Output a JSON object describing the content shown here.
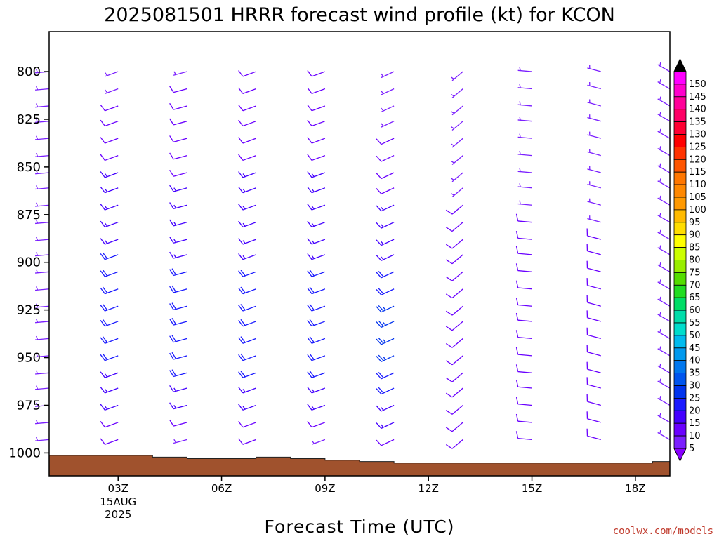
{
  "title": "2025081501 HRRR forecast wind profile (kt) for KCON",
  "xlabel": "Forecast Time (UTC)",
  "credit": "coolwx.com/models",
  "chart_data": {
    "type": "wind_barb_profile",
    "title": "2025081501 HRRR forecast wind profile (kt) for KCON",
    "xlabel": "Forecast Time (UTC)",
    "ylabel": "",
    "units": "kt",
    "y_axis": {
      "reversed": true,
      "range": [
        1012,
        779
      ],
      "ticks": [
        800,
        825,
        850,
        875,
        900,
        925,
        950,
        975,
        1000
      ]
    },
    "x_axis": {
      "range": [
        1,
        19
      ],
      "ticks": [
        {
          "t": 3,
          "label": "03Z",
          "sub": [
            "15AUG",
            "2025"
          ]
        },
        {
          "t": 6,
          "label": "06Z"
        },
        {
          "t": 9,
          "label": "09Z"
        },
        {
          "t": 12,
          "label": "12Z"
        },
        {
          "t": 15,
          "label": "15Z"
        },
        {
          "t": 18,
          "label": "18Z"
        }
      ]
    },
    "levels": [
      800,
      809,
      818,
      826,
      835,
      844,
      853,
      861,
      870,
      879,
      888,
      896,
      905,
      914,
      923,
      931,
      940,
      949,
      958,
      966,
      975,
      984,
      993
    ],
    "barb_times": [
      1,
      3,
      5,
      7,
      9,
      11,
      13,
      15,
      17,
      19
    ],
    "barbs": [
      {
        "t": 1,
        "dir": 265,
        "spd": [
          5,
          5,
          5,
          5,
          5,
          5,
          5,
          5,
          5,
          5,
          5,
          5,
          5,
          5,
          5,
          5,
          5,
          5,
          5,
          5,
          5,
          5,
          5
        ]
      },
      {
        "t": 3,
        "dir": 250,
        "spd": [
          5,
          5,
          10,
          10,
          10,
          10,
          15,
          15,
          15,
          15,
          15,
          20,
          20,
          20,
          20,
          20,
          20,
          20,
          15,
          15,
          15,
          10,
          10
        ]
      },
      {
        "t": 5,
        "dir": 255,
        "spd": [
          5,
          10,
          10,
          10,
          10,
          10,
          10,
          15,
          15,
          15,
          15,
          15,
          20,
          20,
          20,
          20,
          20,
          20,
          20,
          15,
          15,
          10,
          5
        ]
      },
      {
        "t": 7,
        "dir": 250,
        "spd": [
          10,
          10,
          10,
          10,
          10,
          10,
          15,
          15,
          15,
          15,
          15,
          15,
          20,
          20,
          20,
          20,
          20,
          20,
          20,
          15,
          15,
          10,
          10
        ]
      },
      {
        "t": 9,
        "dir": 250,
        "spd": [
          10,
          10,
          10,
          10,
          10,
          10,
          15,
          15,
          15,
          15,
          15,
          15,
          20,
          20,
          20,
          20,
          20,
          20,
          20,
          15,
          15,
          10,
          5
        ]
      },
      {
        "t": 11,
        "dir": 245,
        "spd": [
          5,
          5,
          5,
          5,
          10,
          10,
          10,
          10,
          15,
          15,
          15,
          15,
          20,
          20,
          25,
          25,
          25,
          25,
          20,
          20,
          15,
          15,
          10
        ]
      },
      {
        "t": 13,
        "dir": 230,
        "spd": [
          5,
          5,
          5,
          5,
          5,
          5,
          5,
          5,
          10,
          10,
          10,
          10,
          10,
          10,
          10,
          10,
          10,
          10,
          10,
          10,
          10,
          10,
          10
        ]
      },
      {
        "t": 15,
        "dir": 275,
        "spd": [
          5,
          5,
          5,
          5,
          5,
          5,
          5,
          5,
          5,
          10,
          10,
          10,
          10,
          10,
          10,
          10,
          10,
          10,
          10,
          10,
          10,
          10,
          10
        ]
      },
      {
        "t": 17,
        "dir": 285,
        "spd": [
          5,
          5,
          5,
          5,
          5,
          5,
          5,
          5,
          5,
          5,
          10,
          10,
          10,
          10,
          10,
          10,
          10,
          10,
          10,
          10,
          10,
          10,
          10
        ]
      },
      {
        "t": 19,
        "dir": 300,
        "spd": [
          5,
          5,
          5,
          5,
          5,
          5,
          5,
          5,
          5,
          5,
          5,
          5,
          5,
          5,
          5,
          5,
          5,
          5,
          5,
          5,
          5,
          5,
          5
        ]
      }
    ],
    "surface_pressure": [
      {
        "t": 1,
        "p": 1001.3
      },
      {
        "t": 4,
        "p": 1001.3
      },
      {
        "t": 4,
        "p": 1002.2
      },
      {
        "t": 5,
        "p": 1002.2
      },
      {
        "t": 5,
        "p": 1003.0
      },
      {
        "t": 7,
        "p": 1003.0
      },
      {
        "t": 7,
        "p": 1002.2
      },
      {
        "t": 8,
        "p": 1002.2
      },
      {
        "t": 8,
        "p": 1003.0
      },
      {
        "t": 9,
        "p": 1003.0
      },
      {
        "t": 9,
        "p": 1003.8
      },
      {
        "t": 10,
        "p": 1003.8
      },
      {
        "t": 10,
        "p": 1004.5
      },
      {
        "t": 11,
        "p": 1004.5
      },
      {
        "t": 11,
        "p": 1005.3
      },
      {
        "t": 18.5,
        "p": 1005.3
      },
      {
        "t": 18.5,
        "p": 1004.5
      },
      {
        "t": 19,
        "p": 1004.5
      }
    ],
    "colorbar": {
      "labels": [
        "5",
        "10",
        "15",
        "20",
        "25",
        "30",
        "35",
        "40",
        "45",
        "50",
        "55",
        "60",
        "65",
        "70",
        "75",
        "80",
        "85",
        "90",
        "95",
        "100",
        "105",
        "110",
        "115",
        "120",
        "125",
        "130",
        "135",
        "140",
        "145",
        "150"
      ],
      "colors": [
        "#7b1fff",
        "#6a00ff",
        "#4400ff",
        "#1a1aff",
        "#0033ee",
        "#0055ee",
        "#0077ee",
        "#0099ee",
        "#00bbee",
        "#00ddcc",
        "#00ddaa",
        "#00dd66",
        "#22dd22",
        "#55dd00",
        "#99ee00",
        "#ccff00",
        "#ffff00",
        "#ffdd00",
        "#ffbb00",
        "#ff9900",
        "#ff8800",
        "#ff7700",
        "#ff5500",
        "#ff3300",
        "#ff0000",
        "#ff0033",
        "#ff0066",
        "#ff0099",
        "#ff00cc",
        "#ff00ff"
      ],
      "top_arrow": "#000000",
      "bottom_arrow": "#8800ff"
    },
    "terrain_color": "#a0522d"
  }
}
